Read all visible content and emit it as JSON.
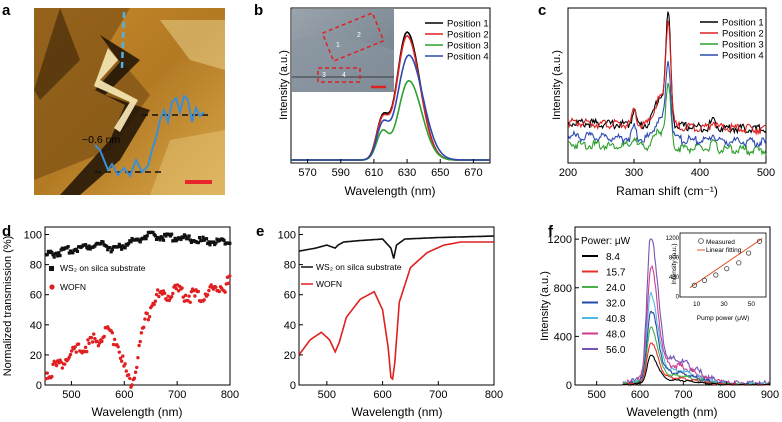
{
  "chart_data": [
    {
      "panel": "a",
      "type": "image",
      "annotation": "~0.6 nm",
      "colors": {
        "profile": "#3a8fd6",
        "scale_bar": "#e8262a",
        "dashed_line": "#4fb2e6"
      }
    },
    {
      "panel": "b",
      "type": "line",
      "xlabel": "Wavelength (nm)",
      "ylabel": "Intensity (a.u.)",
      "xlim": [
        560,
        680
      ],
      "xticks": [
        570,
        590,
        610,
        630,
        650,
        670
      ],
      "legend_position": "top-right",
      "inset": {
        "type": "microscope-image",
        "labels": [
          "1",
          "2",
          "3",
          "4"
        ]
      },
      "series": [
        {
          "name": "Position 1",
          "color": "#000000",
          "peak_x": 630,
          "peak_y": 1.0,
          "shoulder_y": 0.3,
          "width": 11
        },
        {
          "name": "Position 2",
          "color": "#e02020",
          "peak_x": 630,
          "peak_y": 0.97,
          "shoulder_y": 0.29,
          "width": 11
        },
        {
          "name": "Position 3",
          "color": "#2ea02e",
          "peak_x": 631,
          "peak_y": 0.62,
          "shoulder_y": 0.21,
          "width": 11
        },
        {
          "name": "Position 4",
          "color": "#2c4ab0",
          "peak_x": 631,
          "peak_y": 0.82,
          "shoulder_y": 0.25,
          "width": 12
        }
      ]
    },
    {
      "panel": "c",
      "type": "line",
      "xlabel": "Raman shift (cm⁻¹)",
      "ylabel": "Intensity (a.u.)",
      "xlim": [
        200,
        500
      ],
      "xticks": [
        200,
        300,
        400,
        500
      ],
      "legend_position": "top-right",
      "series": [
        {
          "name": "Position 1",
          "color": "#000000",
          "baseline": 0.28,
          "peak_350": 1.0,
          "peak_420": 0.06
        },
        {
          "name": "Position 2",
          "color": "#e02020",
          "baseline": 0.28,
          "peak_350": 0.95,
          "peak_420": 0.05
        },
        {
          "name": "Position 3",
          "color": "#2ea02e",
          "baseline": 0.12,
          "peak_350": 0.55,
          "peak_420": 0.04
        },
        {
          "name": "Position 4",
          "color": "#2c4ab0",
          "baseline": 0.18,
          "peak_350": 0.7,
          "peak_420": 0.05
        }
      ]
    },
    {
      "panel": "d",
      "type": "scatter",
      "xlabel": "Wavelength (nm)",
      "ylabel": "Normalized transmission (%)",
      "xlim": [
        450,
        800
      ],
      "ylim": [
        0,
        105
      ],
      "xticks": [
        500,
        600,
        700,
        800
      ],
      "yticks": [
        0,
        20,
        40,
        60,
        80,
        100
      ],
      "series": [
        {
          "name": "WS₂ on silca substrate",
          "color": "#111111",
          "x": [
            450,
            500,
            540,
            560,
            580,
            600,
            620,
            640,
            660,
            700,
            740,
            780,
            800
          ],
          "y": [
            86,
            90,
            93,
            94,
            90,
            93,
            96,
            99,
            99,
            98,
            96,
            95,
            95
          ]
        },
        {
          "name": "WOFN",
          "color": "#e02020",
          "x": [
            450,
            470,
            490,
            510,
            530,
            550,
            570,
            585,
            595,
            605,
            612,
            620,
            630,
            640,
            650,
            660,
            680,
            700,
            720,
            740,
            760,
            780,
            800
          ],
          "y": [
            7,
            12,
            17,
            22,
            27,
            30,
            35,
            30,
            18,
            5,
            2,
            10,
            28,
            42,
            52,
            58,
            60,
            62,
            60,
            58,
            62,
            65,
            68
          ]
        }
      ]
    },
    {
      "panel": "e",
      "type": "line",
      "xlabel": "Wavelength (nm)",
      "ylim": [
        0,
        105
      ],
      "xlim": [
        450,
        800
      ],
      "xticks": [
        500,
        600,
        700,
        800
      ],
      "yticks": [
        0,
        20,
        40,
        60,
        80,
        100
      ],
      "series": [
        {
          "name": "WS₂ on silca substrate",
          "color": "#111111",
          "x": [
            450,
            480,
            500,
            515,
            520,
            530,
            560,
            600,
            615,
            620,
            625,
            640,
            700,
            800
          ],
          "y": [
            89,
            91,
            93,
            91,
            93,
            95,
            96,
            97,
            91,
            84,
            93,
            97,
            98,
            99
          ]
        },
        {
          "name": "WOFN",
          "color": "#e02020",
          "x": [
            450,
            470,
            490,
            505,
            515,
            522,
            535,
            560,
            585,
            600,
            610,
            615,
            618,
            622,
            630,
            650,
            680,
            710,
            740,
            760,
            800
          ],
          "y": [
            20,
            30,
            35,
            30,
            22,
            28,
            45,
            57,
            62,
            50,
            25,
            5,
            4,
            15,
            55,
            78,
            88,
            93,
            95,
            95,
            95
          ]
        }
      ]
    },
    {
      "panel": "f",
      "type": "line",
      "xlabel": "Wavelength (nm)",
      "ylabel": "Intensity (a.u.)",
      "xlim": [
        450,
        900
      ],
      "ylim": [
        0,
        1300
      ],
      "xticks": [
        500,
        600,
        700,
        800,
        900
      ],
      "yticks": [
        0,
        400,
        800,
        1200
      ],
      "legend_title": "Power: μW",
      "series": [
        {
          "name": "8.4",
          "color": "#000000",
          "peak": 220
        },
        {
          "name": "15.7",
          "color": "#e8302e",
          "peak": 320
        },
        {
          "name": "24.0",
          "color": "#46b04a",
          "peak": 430
        },
        {
          "name": "32.0",
          "color": "#264aa6",
          "peak": 560
        },
        {
          "name": "40.8",
          "color": "#4fb8e3",
          "peak": 680
        },
        {
          "name": "48.0",
          "color": "#d13c8a",
          "peak": 880
        },
        {
          "name": "56.0",
          "color": "#7653b5",
          "peak": 1120
        }
      ],
      "inset": {
        "xlabel": "Pump power (μW)",
        "ylabel": "Intensity (a.u.)",
        "xticks": [
          10,
          30,
          50
        ],
        "yticks": [
          0,
          400,
          800,
          1200
        ],
        "legend": [
          "Measured",
          "Linear fitting"
        ],
        "x": [
          8.4,
          15.7,
          24.0,
          32.0,
          40.8,
          48.0,
          56.0
        ],
        "y": [
          220,
          320,
          430,
          560,
          680,
          880,
          1120
        ]
      }
    }
  ],
  "labels": {
    "a": "a",
    "b": "b",
    "c": "c",
    "d": "d",
    "e": "e",
    "f": "f",
    "a_annotation": "~0.6 nm",
    "b_ylabel": "Intensity (a.u.)",
    "b_xlabel": "Wavelength (nm)",
    "c_ylabel": "Intensity (a.u.)",
    "c_xlabel": "Raman shift (cm⁻¹)",
    "d_ylabel": "Normalized transmission (%)",
    "d_xlabel": "Wavelength (nm)",
    "e_xlabel": "Wavelength (nm)",
    "f_ylabel": "Intensity (a.u.)",
    "f_xlabel": "Wavelength (nm)",
    "d_legend_ws2": "WS₂ on silca substrate",
    "d_legend_wofn": "WOFN",
    "e_legend_ws2": "WS₂ on silca substrate",
    "e_legend_wofn": "WOFN",
    "f_legend_title": "Power: μW",
    "f_inset_xlabel": "Pump power (μW)",
    "f_inset_ylabel": "Intensity (a.u.)",
    "f_inset_measured": "Measured",
    "f_inset_fit": "Linear fitting"
  }
}
